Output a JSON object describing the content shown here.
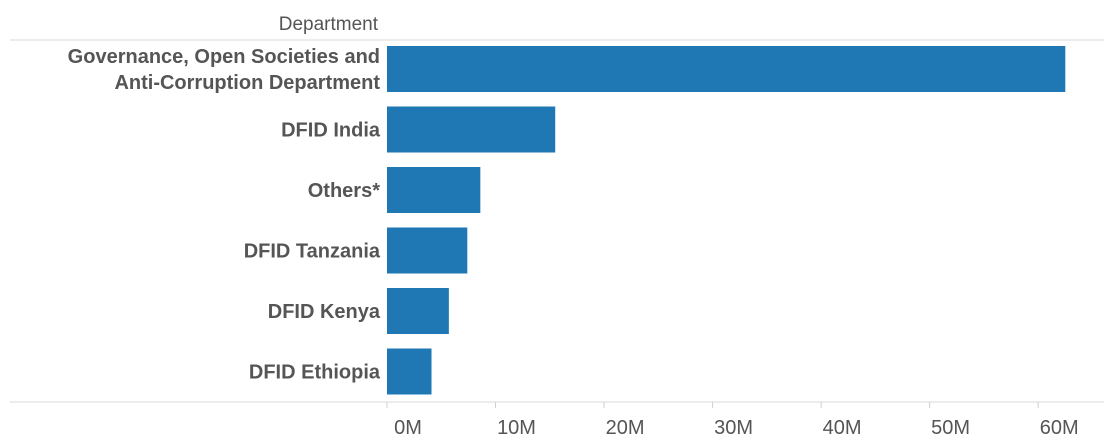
{
  "chart_data": {
    "type": "bar",
    "orientation": "horizontal",
    "header_label": "Department",
    "categories": [
      [
        "Governance, Open Societies and",
        "Anti-Corruption Department"
      ],
      [
        "DFID India"
      ],
      [
        "Others*"
      ],
      [
        "DFID Tanzania"
      ],
      [
        "DFID Kenya"
      ],
      [
        "DFID Ethiopia"
      ]
    ],
    "values": [
      62.5,
      15.5,
      8.6,
      7.4,
      5.7,
      4.1
    ],
    "unit": "M",
    "xlim": [
      0,
      64.5
    ],
    "xticks": [
      0,
      10,
      20,
      30,
      40,
      50,
      60
    ],
    "xtick_labels": [
      "0M",
      "10M",
      "20M",
      "30M",
      "40M",
      "50M",
      "60M"
    ],
    "bar_color": "#1f77b4",
    "grid": false
  }
}
